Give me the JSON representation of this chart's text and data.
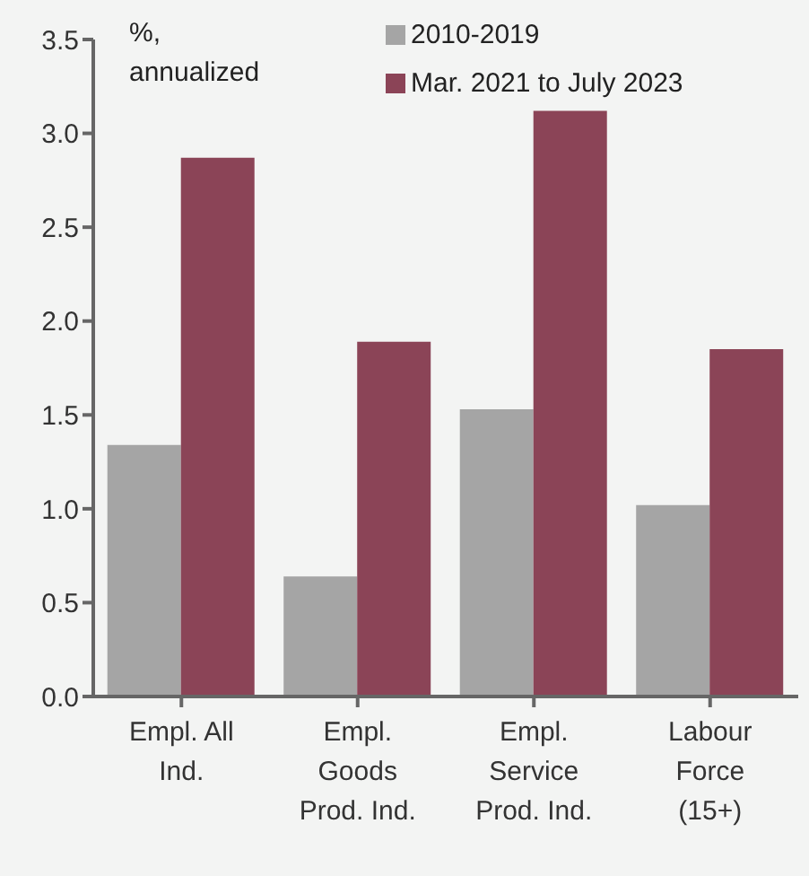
{
  "chart_data": {
    "type": "bar",
    "categories": [
      "Empl. All Ind.",
      "Empl. Goods Prod. Ind.",
      "Empl. Service Prod. Ind.",
      "Labour Force (15+)"
    ],
    "series": [
      {
        "name": "2010-2019",
        "color": "#a5a5a5",
        "values": [
          1.34,
          0.64,
          1.53,
          1.02
        ]
      },
      {
        "name": "Mar. 2021 to July 2023",
        "color": "#8b4457",
        "values": [
          2.87,
          1.89,
          3.12,
          1.85
        ]
      }
    ],
    "ylim": [
      0,
      3.5
    ],
    "yticks": [
      {
        "value": 0,
        "label": "0.0"
      },
      {
        "value": 0.5,
        "label": "0.5"
      },
      {
        "value": 1,
        "label": "1.0"
      },
      {
        "value": 1.5,
        "label": "1.5"
      },
      {
        "value": 2,
        "label": "2.0"
      },
      {
        "value": 2.5,
        "label": "2.5"
      },
      {
        "value": 3,
        "label": "3.0"
      },
      {
        "value": 3.5,
        "label": "3.5"
      }
    ],
    "annotations": [
      "%, annualized"
    ],
    "legend": "top right",
    "grid": false
  }
}
